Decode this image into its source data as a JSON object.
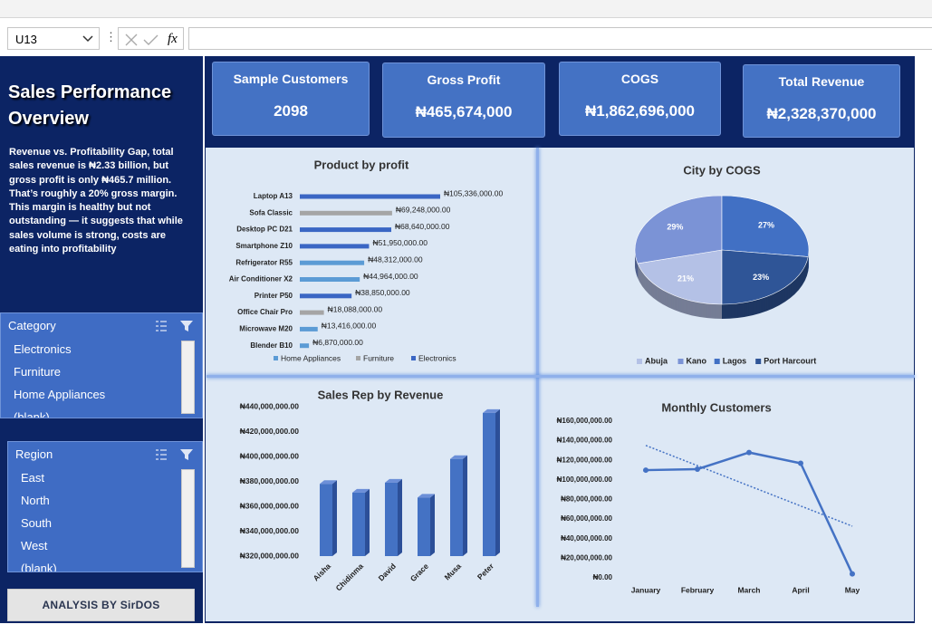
{
  "formula_bar": {
    "name_box": "U13",
    "fx": "fx"
  },
  "sidebar": {
    "title": "Sales Performance Overview",
    "description": "Revenue vs. Profitability Gap, total sales revenue is ₦2.33 billion, but gross profit is only ₦465.7 million. That’s roughly a 20% gross margin. This margin is healthy but not outstanding — it suggests that while sales volume is strong, costs are eating into profitability",
    "footer": "ANALYSIS BY SirDOS"
  },
  "slicers": [
    {
      "title": "Category",
      "items": [
        "Electronics",
        "Furniture",
        "Home Appliances",
        "(blank)"
      ]
    },
    {
      "title": "Region",
      "items": [
        "East",
        "North",
        "South",
        "West",
        "(blank)"
      ]
    }
  ],
  "kpis": [
    {
      "label": "Sample Customers",
      "value": 2098
    },
    {
      "label": "Gross Profit",
      "value": "₦465,674,000"
    },
    {
      "label": "COGS",
      "value": "₦1,862,696,000"
    },
    {
      "label": "Total Revenue",
      "value": "₦2,328,370,000"
    }
  ],
  "chart_data": [
    {
      "type": "hbar",
      "title": "Product by profit",
      "categories": [
        "Laptop A13",
        "Sofa Classic",
        "Desktop PC D21",
        "Smartphone Z10",
        "Refrigerator R55",
        "Air Conditioner X2",
        "Printer P50",
        "Office Chair Pro",
        "Microwave M20",
        "Blender B10"
      ],
      "series": [
        {
          "name": "Home Appliances",
          "color": "#5b9bd5",
          "values": [
            null,
            null,
            null,
            null,
            48312000,
            44964000,
            null,
            null,
            13416000,
            6870000
          ],
          "value_labels": [
            null,
            null,
            null,
            null,
            "₦48,312,000.00",
            "₦44,964,000.00",
            null,
            null,
            "₦13,416,000.00",
            "₦6,870,000.00"
          ]
        },
        {
          "name": "Furniture",
          "color": "#a5a5a5",
          "values": [
            null,
            69248000,
            null,
            null,
            null,
            null,
            null,
            18088000,
            null,
            null
          ],
          "value_labels": [
            null,
            "₦69,248,000.00",
            null,
            null,
            null,
            null,
            null,
            "₦18,088,000.00",
            null,
            null
          ]
        },
        {
          "name": "Electronics",
          "color": "#3a66c4",
          "values": [
            105336000,
            null,
            68640000,
            51950000,
            null,
            null,
            38850000,
            null,
            null,
            null
          ],
          "value_labels": [
            "₦105,336,000.00",
            null,
            "₦68,640,000.00",
            "₦51,950,000.00",
            null,
            null,
            "₦38,850,000.00",
            null,
            null,
            null
          ]
        }
      ]
    },
    {
      "type": "pie",
      "title": "City by COGS",
      "categories": [
        "Abuja",
        "Kano",
        "Lagos",
        "Port Harcourt"
      ],
      "values": [
        21,
        29,
        27,
        23
      ],
      "value_labels": [
        "21%",
        "29%",
        "27%",
        "23%"
      ],
      "colors": [
        "#b4c1e6",
        "#7b93d6",
        "#4170c4",
        "#2f5597"
      ]
    },
    {
      "type": "bar",
      "title": "Sales Rep by Revenue",
      "categories": [
        "Aisha",
        "Chidinma",
        "David",
        "Grace",
        "Musa",
        "Peter"
      ],
      "values": [
        378000000,
        371000000,
        379000000,
        367000000,
        398000000,
        435000000
      ],
      "color": "#4472c4",
      "ylim": [
        320000000,
        440000000
      ],
      "yticks": [
        {
          "value": 320000000,
          "label": "₦320,000,000.00"
        },
        {
          "value": 340000000,
          "label": "₦340,000,000.00"
        },
        {
          "value": 360000000,
          "label": "₦360,000,000.00"
        },
        {
          "value": 380000000,
          "label": "₦380,000,000.00"
        },
        {
          "value": 400000000,
          "label": "₦400,000,000.00"
        },
        {
          "value": 420000000,
          "label": "₦420,000,000.00"
        },
        {
          "value": 440000000,
          "label": "₦440,000,000.00"
        }
      ]
    },
    {
      "type": "line",
      "title": "Monthly Customers",
      "categories": [
        "January",
        "February",
        "March",
        "April",
        "May"
      ],
      "values": [
        110000000,
        111000000,
        128000000,
        117000000,
        4000000
      ],
      "color": "#4472c4",
      "trendline": true,
      "ylim": [
        0,
        160000000
      ],
      "yticks": [
        {
          "value": 0,
          "label": "₦0.00"
        },
        {
          "value": 20000000,
          "label": "₦20,000,000.00"
        },
        {
          "value": 40000000,
          "label": "₦40,000,000.00"
        },
        {
          "value": 60000000,
          "label": "₦60,000,000.00"
        },
        {
          "value": 80000000,
          "label": "₦80,000,000.00"
        },
        {
          "value": 100000000,
          "label": "₦100,000,000.00"
        },
        {
          "value": 120000000,
          "label": "₦120,000,000.00"
        },
        {
          "value": 140000000,
          "label": "₦140,000,000.00"
        },
        {
          "value": 160000000,
          "label": "₦160,000,000.00"
        }
      ]
    }
  ]
}
